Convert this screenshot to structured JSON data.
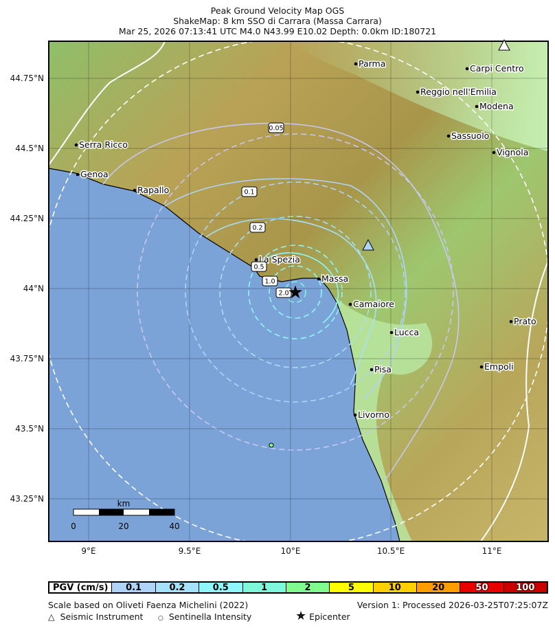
{
  "title": {
    "line1": "Peak Ground Velocity Map OGS",
    "line2": "ShakeMap: 8 km SSO di Carrara (Massa Carrara)",
    "line3": "Mar 25, 2026 07:13:41 UTC M4.0 N43.99 E10.02 Depth: 0.0km ID:180721"
  },
  "axes": {
    "lon_ticks": [
      "9°E",
      "9.5°E",
      "10°E",
      "10.5°E",
      "11°E"
    ],
    "lat_ticks": [
      "44.75°N",
      "44.5°N",
      "44.25°N",
      "44°N",
      "43.75°N",
      "43.5°N",
      "43.25°N"
    ]
  },
  "cities": [
    "Parma",
    "Carpi Centro",
    "Reggio nell'Emilia",
    "Modena",
    "Sassuolo",
    "Vignola",
    "Serra Ricco",
    "Genoa",
    "Rapallo",
    "La Spezia",
    "Massa",
    "Camaiore",
    "Lucca",
    "Prato",
    "Pisa",
    "Empoli",
    "Livorno"
  ],
  "contour_labels": [
    "0.05",
    "0.1",
    "0.2",
    "0.5",
    "1.0",
    "2.0"
  ],
  "scalebar": {
    "unit": "km",
    "labels": [
      "0",
      "20",
      "40"
    ]
  },
  "legend": {
    "header": "PGV (cm/s)",
    "bins": [
      {
        "label": "0.1",
        "color": "#afd4f8"
      },
      {
        "label": "0.2",
        "color": "#a6e1f9"
      },
      {
        "label": "0.5",
        "color": "#8ef7fb"
      },
      {
        "label": "1",
        "color": "#7ef8da"
      },
      {
        "label": "2",
        "color": "#80fb8f"
      },
      {
        "label": "5",
        "color": "#ffff00"
      },
      {
        "label": "10",
        "color": "#fed000"
      },
      {
        "label": "20",
        "color": "#ff9c00"
      },
      {
        "label": "50",
        "color": "#e80000"
      },
      {
        "label": "100",
        "color": "#c80000"
      }
    ]
  },
  "footer": {
    "scale": "Scale based on Oliveti Faenza Michelini (2022)",
    "version": "Version 1: Processed 2026-03-25T07:25:07Z",
    "instrument": "Seismic Instrument",
    "sentinella": "Sentinella Intensity",
    "epicenter": "Epicenter",
    "instrument_icon": "triangle",
    "sentinella_icon": "circle",
    "epicenter_icon": "star"
  },
  "colors": {
    "sea": "#7ba3d8",
    "epicenter": "#000000"
  }
}
